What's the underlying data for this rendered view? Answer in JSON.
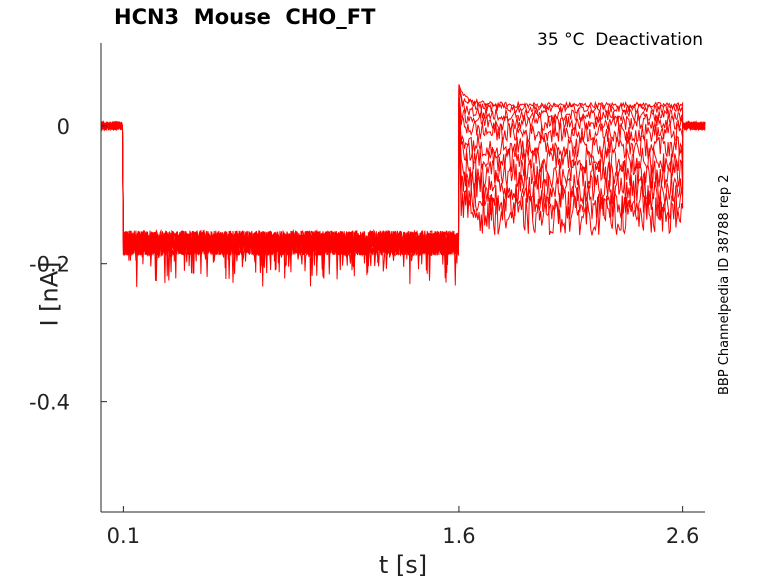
{
  "chart_data": {
    "type": "line",
    "title": "HCN3  Mouse  CHO_FT",
    "subtitle": "35 °C  Deactivation",
    "side_label": "BBP Channelpedia ID 38788 rep 2",
    "xlabel": "t [s]",
    "ylabel": "I [nA]",
    "xlim": [
      0.0,
      2.7
    ],
    "ylim": [
      -0.56,
      0.12
    ],
    "x_ticks": [
      0.1,
      1.6,
      2.6
    ],
    "x_tick_labels": [
      "0.1",
      "1.6",
      "2.6"
    ],
    "y_ticks": [
      0,
      -0.2,
      -0.4
    ],
    "y_tick_labels": [
      "0",
      "-0.2",
      "-0.4"
    ],
    "grid": false,
    "line_color": "#ff0000",
    "protocol": {
      "baseline_current": 0.0,
      "step_start": 0.1,
      "step_end": 1.6,
      "step_current": -0.17,
      "test_end": 2.6
    },
    "series": [
      {
        "steady_current": 0.03
      },
      {
        "steady_current": 0.025
      },
      {
        "steady_current": 0.015
      },
      {
        "steady_current": 0.005
      },
      {
        "steady_current": -0.01
      },
      {
        "steady_current": -0.03
      },
      {
        "steady_current": -0.05
      },
      {
        "steady_current": -0.07
      },
      {
        "steady_current": -0.09
      },
      {
        "steady_current": -0.11
      },
      {
        "steady_current": -0.13
      }
    ]
  }
}
